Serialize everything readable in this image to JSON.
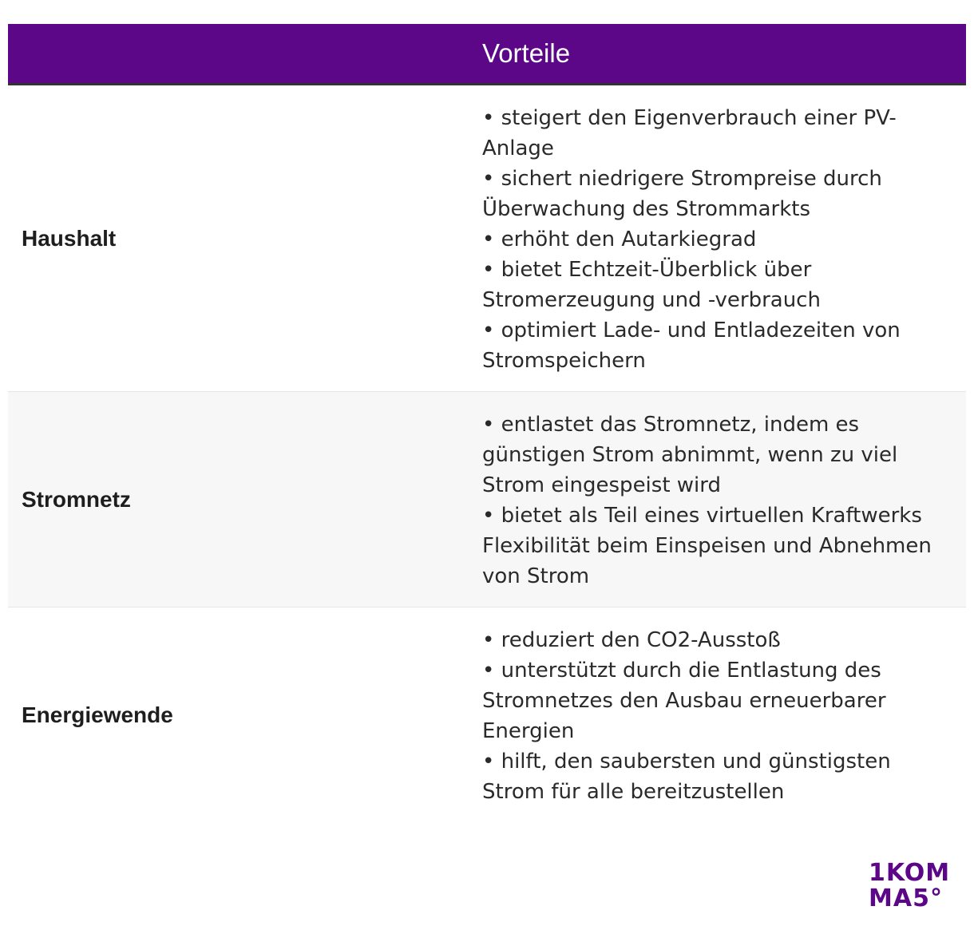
{
  "header": {
    "title": "Vorteile"
  },
  "rows": [
    {
      "label": "Haushalt",
      "bullets": [
        "• steigert den Eigenverbrauch einer PV-Anlage",
        "• sichert niedrigere Strompreise durch Überwachung des Strommarkts",
        "• erhöht den Autarkiegrad",
        "• bietet Echtzeit-Überblick über Stromerzeugung und -verbrauch",
        "• optimiert Lade- und Entladezeiten von Stromspeichern"
      ]
    },
    {
      "label": "Stromnetz",
      "bullets": [
        "• entlastet das Stromnetz, indem es günstigen Strom abnimmt, wenn zu viel Strom eingespeist wird",
        "• bietet als Teil eines virtuellen Kraftwerks Flexibilität beim Einspeisen und Abnehmen von Strom"
      ]
    },
    {
      "label": "Energiewende",
      "bullets": [
        "• reduziert den CO2-Ausstoß",
        "• unterstützt durch die Entlastung des Stromnetzes den Ausbau erneuerbarer Energien",
        "• hilft, den saubersten und günstigsten Strom für alle bereitzustellen"
      ]
    }
  ],
  "logo": {
    "line1": "1KOM",
    "line2": "MA5°"
  },
  "colors": {
    "header_bg": "#5c0788",
    "alt_row_bg": "#f7f7f7",
    "logo": "#5c0788"
  }
}
